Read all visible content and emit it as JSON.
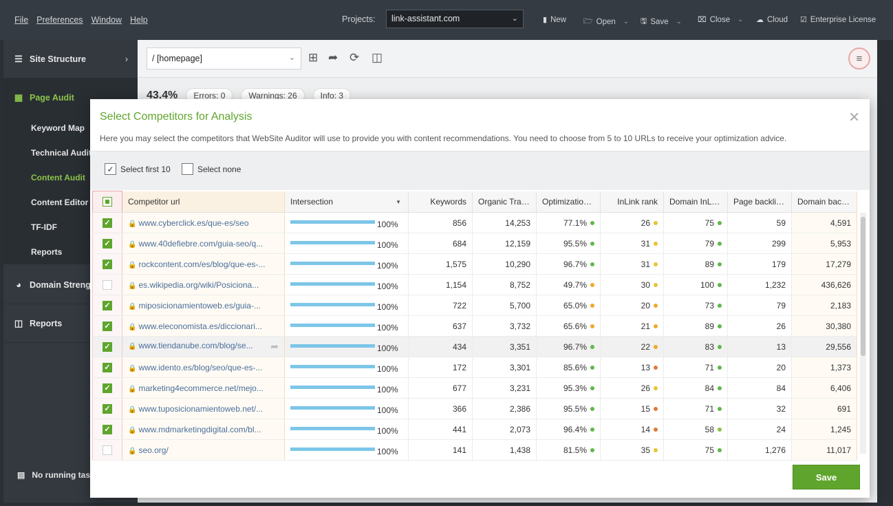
{
  "menubar": {
    "items": [
      "File",
      "Preferences",
      "Window",
      "Help"
    ],
    "projects_label": "Projects:",
    "project_value": "link-assistant.com",
    "buttons": {
      "new": "New",
      "open": "Open",
      "save": "Save",
      "close": "Close",
      "cloud": "Cloud",
      "enterprise": "Enterprise License"
    }
  },
  "sidebar": {
    "site_structure": "Site Structure",
    "page_audit": "Page Audit",
    "sub_items": [
      "Keyword Map",
      "Technical Audit",
      "Content Audit",
      "Content Editor",
      "TF-IDF",
      "Reports"
    ],
    "domain_strength": "Domain Strength",
    "reports": "Reports",
    "footer": "No running tasks"
  },
  "mainhead": {
    "page_value": "/ [homepage]"
  },
  "stats_peek": {
    "score": "43.4%",
    "errors": "Errors: 0",
    "warnings": "Warnings: 26",
    "info": "Info: 3"
  },
  "dialog": {
    "title": "Select Competitors for Analysis",
    "description": "Here you may select the competitors that WebSite Auditor will use to provide you with content recommendations. You need to choose from 5 to 10 URLs to receive your optimization advice.",
    "select_first": "Select first 10",
    "select_none": "Select none",
    "save_label": "Save",
    "columns": [
      "Competitor url",
      "Intersection",
      "Keywords",
      "Organic Traffic",
      "Optimization ...",
      "InLink rank",
      "Domain InLin...",
      "Page backlinks",
      "Domain backl..."
    ],
    "rows": [
      {
        "checked": true,
        "url": "www.cyberclick.es/que-es/seo",
        "intersection": "100%",
        "keywords": "856",
        "traffic": "14,253",
        "opt": "77.1%",
        "opt_color": "#5fb84a",
        "inlink": "26",
        "inlink_color": "#e8c531",
        "dinlink": "75",
        "dinlink_color": "#5fb84a",
        "pback": "59",
        "dback": "4,591"
      },
      {
        "checked": true,
        "url": "www.40defiebre.com/guia-seo/q...",
        "intersection": "100%",
        "keywords": "684",
        "traffic": "12,159",
        "opt": "95.5%",
        "opt_color": "#5fb84a",
        "inlink": "31",
        "inlink_color": "#e8c531",
        "dinlink": "79",
        "dinlink_color": "#5fb84a",
        "pback": "299",
        "dback": "5,953"
      },
      {
        "checked": true,
        "url": "rockcontent.com/es/blog/que-es-...",
        "intersection": "100%",
        "keywords": "1,575",
        "traffic": "10,290",
        "opt": "96.7%",
        "opt_color": "#5fb84a",
        "inlink": "31",
        "inlink_color": "#e8c531",
        "dinlink": "89",
        "dinlink_color": "#5fb84a",
        "pback": "179",
        "dback": "17,279"
      },
      {
        "checked": false,
        "url": "es.wikipedia.org/wiki/Posiciona...",
        "intersection": "100%",
        "keywords": "1,154",
        "traffic": "8,752",
        "opt": "49.7%",
        "opt_color": "#f0a830",
        "inlink": "30",
        "inlink_color": "#e8c531",
        "dinlink": "100",
        "dinlink_color": "#5fb84a",
        "pback": "1,232",
        "dback": "436,626"
      },
      {
        "checked": true,
        "url": "miposicionamientoweb.es/guia-...",
        "intersection": "100%",
        "keywords": "722",
        "traffic": "5,700",
        "opt": "65.0%",
        "opt_color": "#f0a830",
        "inlink": "20",
        "inlink_color": "#f0a830",
        "dinlink": "73",
        "dinlink_color": "#5fb84a",
        "pback": "79",
        "dback": "2,183"
      },
      {
        "checked": true,
        "url": "www.eleconomista.es/diccionari...",
        "intersection": "100%",
        "keywords": "637",
        "traffic": "3,732",
        "opt": "65.6%",
        "opt_color": "#f0a830",
        "inlink": "21",
        "inlink_color": "#f0a830",
        "dinlink": "89",
        "dinlink_color": "#5fb84a",
        "pback": "26",
        "dback": "30,380"
      },
      {
        "checked": true,
        "url": "www.tiendanube.com/blog/se...",
        "intersection": "100%",
        "keywords": "434",
        "traffic": "3,351",
        "opt": "96.7%",
        "opt_color": "#5fb84a",
        "inlink": "22",
        "inlink_color": "#f0a830",
        "dinlink": "83",
        "dinlink_color": "#5fb84a",
        "pback": "13",
        "dback": "29,556",
        "highlight": true
      },
      {
        "checked": true,
        "url": "www.idento.es/blog/seo/que-es-...",
        "intersection": "100%",
        "keywords": "172",
        "traffic": "3,301",
        "opt": "85.6%",
        "opt_color": "#5fb84a",
        "inlink": "13",
        "inlink_color": "#e07a3a",
        "dinlink": "71",
        "dinlink_color": "#5fb84a",
        "pback": "20",
        "dback": "1,373"
      },
      {
        "checked": true,
        "url": "marketing4ecommerce.net/mejo...",
        "intersection": "100%",
        "keywords": "677",
        "traffic": "3,231",
        "opt": "95.3%",
        "opt_color": "#5fb84a",
        "inlink": "26",
        "inlink_color": "#e8c531",
        "dinlink": "84",
        "dinlink_color": "#5fb84a",
        "pback": "84",
        "dback": "6,406"
      },
      {
        "checked": true,
        "url": "www.tuposicionamientoweb.net/...",
        "intersection": "100%",
        "keywords": "366",
        "traffic": "2,386",
        "opt": "95.5%",
        "opt_color": "#5fb84a",
        "inlink": "15",
        "inlink_color": "#e07a3a",
        "dinlink": "71",
        "dinlink_color": "#5fb84a",
        "pback": "32",
        "dback": "691"
      },
      {
        "checked": true,
        "url": "www.mdmarketingdigital.com/bl...",
        "intersection": "100%",
        "keywords": "441",
        "traffic": "2,073",
        "opt": "96.4%",
        "opt_color": "#5fb84a",
        "inlink": "14",
        "inlink_color": "#e07a3a",
        "dinlink": "58",
        "dinlink_color": "#8cc34a",
        "pback": "24",
        "dback": "1,245"
      },
      {
        "checked": false,
        "url": "seo.org/",
        "intersection": "100%",
        "keywords": "141",
        "traffic": "1,438",
        "opt": "81.5%",
        "opt_color": "#5fb84a",
        "inlink": "35",
        "inlink_color": "#e8c531",
        "dinlink": "75",
        "dinlink_color": "#5fb84a",
        "pback": "1,276",
        "dback": "11,017"
      }
    ]
  }
}
